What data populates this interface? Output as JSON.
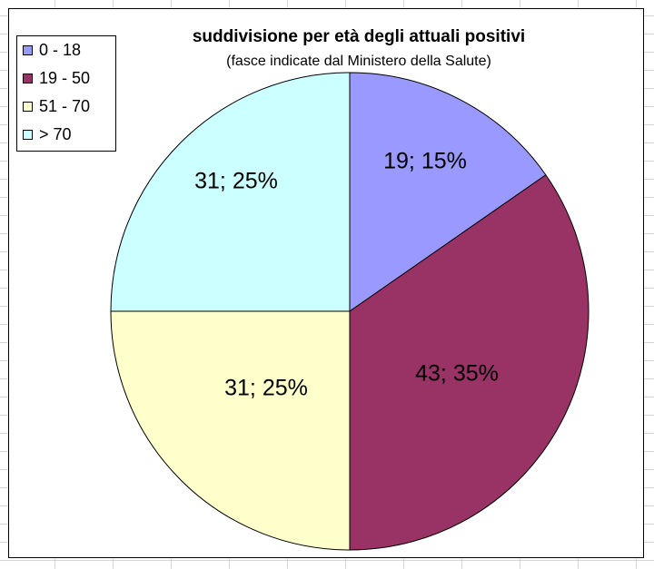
{
  "chart_data": {
    "type": "pie",
    "title": "suddivisione per età degli attuali positivi",
    "subtitle": "(fasce indicate dal Ministero della Salute)",
    "legend_position": "top-left",
    "slices": [
      {
        "label": "0 - 18",
        "value": 19,
        "percent": 15,
        "data_label": "19; 15%",
        "color": "#9999ff"
      },
      {
        "label": "19 - 50",
        "value": 43,
        "percent": 35,
        "data_label": "43; 35%",
        "color": "#993366"
      },
      {
        "label": "51 - 70",
        "value": 31,
        "percent": 25,
        "data_label": "31; 25%",
        "color": "#ffffcc"
      },
      {
        "label": "> 70",
        "value": 31,
        "percent": 25,
        "data_label": "31; 25%",
        "color": "#ccffff"
      }
    ]
  }
}
